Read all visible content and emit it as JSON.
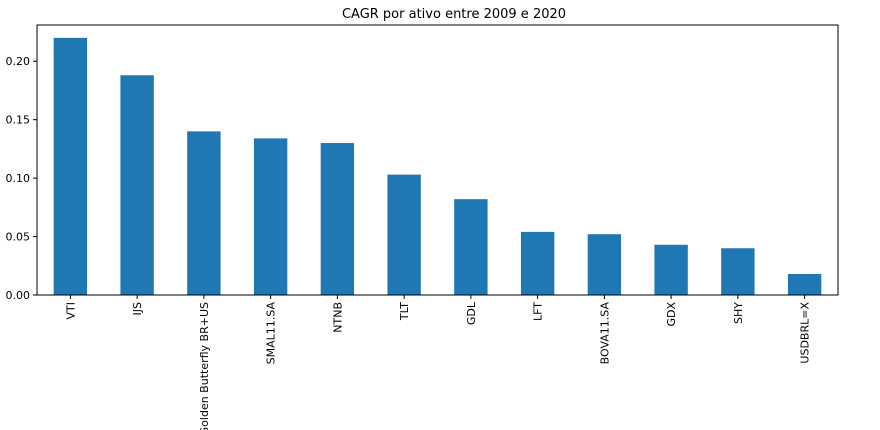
{
  "chart_data": {
    "type": "bar",
    "title": "CAGR por ativo entre 2009 e 2020",
    "xlabel": "",
    "ylabel": "",
    "categories": [
      "VTI",
      "IJS",
      "Golden Butterfly BR+US",
      "SMAL11.SA",
      "NTNB",
      "TLT",
      "GDL",
      "LFT",
      "BOVA11.SA",
      "GDX",
      "SHY",
      "USDBRL=X"
    ],
    "values": [
      0.22,
      0.188,
      0.14,
      0.134,
      0.13,
      0.103,
      0.082,
      0.054,
      0.052,
      0.043,
      0.04,
      0.018
    ],
    "yticks": [
      0.0,
      0.05,
      0.1,
      0.15,
      0.2
    ],
    "ytick_labels": [
      "0.00",
      "0.05",
      "0.10",
      "0.15",
      "0.20"
    ],
    "ylim": [
      0,
      0.231
    ],
    "bar_color": "#1f77b4",
    "grid": false,
    "legend": false
  }
}
